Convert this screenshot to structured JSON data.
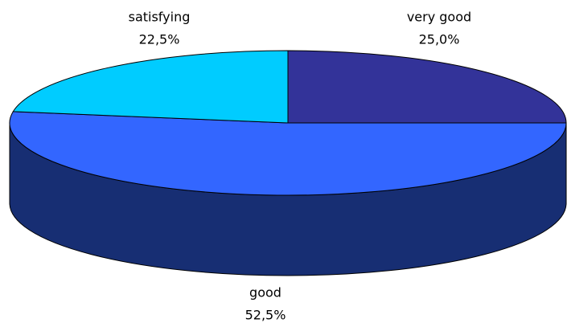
{
  "chart_data": {
    "type": "pie",
    "categories": [
      "very good",
      "good",
      "satisfying"
    ],
    "values": [
      25.0,
      52.5,
      22.5
    ],
    "value_labels": [
      "25,0%",
      "52,5%",
      "22,5%"
    ],
    "colors": [
      "#333399",
      "#3366ff",
      "#00ccff"
    ],
    "start_angle": 90,
    "direction": "clockwise"
  }
}
